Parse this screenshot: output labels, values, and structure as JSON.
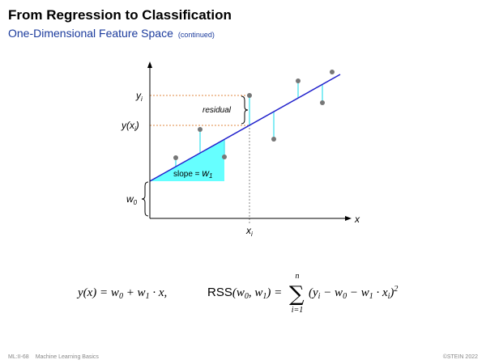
{
  "header": {
    "title": "From Regression to Classification",
    "subtitle": "One-Dimensional Feature Space",
    "note": "(continued)"
  },
  "diagram": {
    "y_i": [
      "y",
      "i"
    ],
    "y_xi": [
      "y(x",
      "i",
      ")"
    ],
    "residual": "residual",
    "slope": [
      "slope = ",
      "w",
      "1"
    ],
    "w0": [
      "w",
      "0"
    ],
    "x_i": [
      "x",
      "i"
    ],
    "x": "x"
  },
  "formulas": {
    "model": [
      "y(x) = w",
      "0",
      " + w",
      "1",
      " · x,"
    ],
    "rss": {
      "name": "RSS",
      "args": [
        "(w",
        "0",
        ", w",
        "1",
        ") ="
      ],
      "sigma": "∑",
      "upper": "n",
      "lower": "i=1",
      "body": [
        "(y",
        "i",
        " − w",
        "0",
        " − w",
        "1",
        " · x",
        "i",
        ")",
        "2"
      ]
    }
  },
  "footer": {
    "page": "ML:II-68",
    "topic": "Machine Learning Basics",
    "copyright": "©STEIN 2022"
  }
}
